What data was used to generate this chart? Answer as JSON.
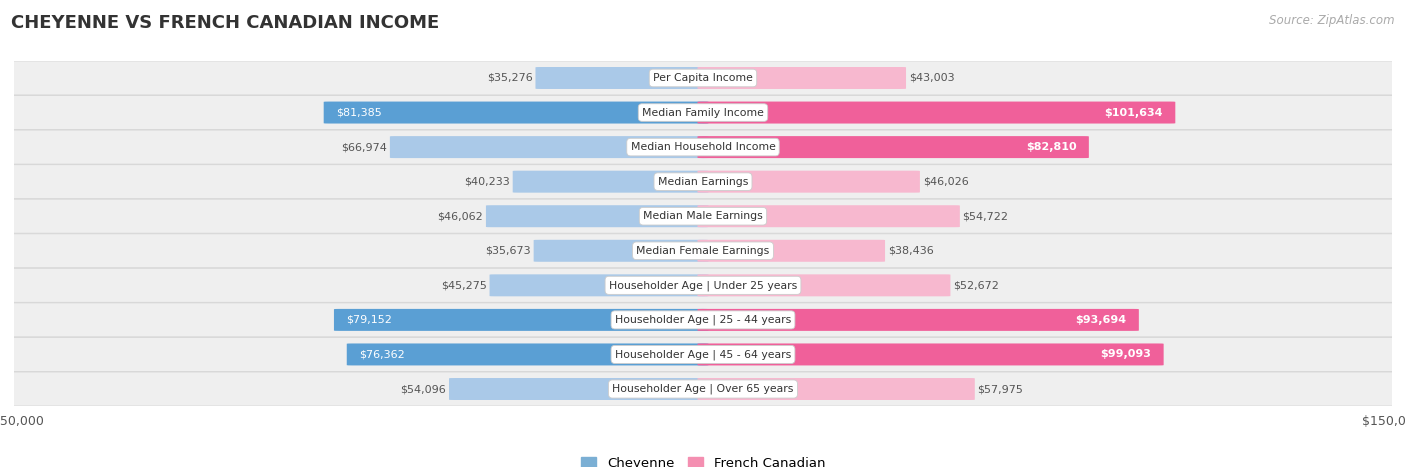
{
  "title": "CHEYENNE VS FRENCH CANADIAN INCOME",
  "source": "Source: ZipAtlas.com",
  "categories": [
    "Per Capita Income",
    "Median Family Income",
    "Median Household Income",
    "Median Earnings",
    "Median Male Earnings",
    "Median Female Earnings",
    "Householder Age | Under 25 years",
    "Householder Age | 25 - 44 years",
    "Householder Age | 45 - 64 years",
    "Householder Age | Over 65 years"
  ],
  "cheyenne_values": [
    35276,
    81385,
    66974,
    40233,
    46062,
    35673,
    45275,
    79152,
    76362,
    54096
  ],
  "french_values": [
    43003,
    101634,
    82810,
    46026,
    54722,
    38436,
    52672,
    93694,
    99093,
    57975
  ],
  "cheyenne_light": "#aac9e8",
  "cheyenne_dark": "#5a9fd4",
  "french_light": "#f7b8cf",
  "french_dark": "#f0609a",
  "max_value": 150000,
  "bar_height": 0.62,
  "row_bg": "#efefef",
  "row_edge": "#d8d8d8",
  "label_dark": "#555555",
  "label_white": "#ffffff",
  "title_color": "#333333",
  "source_color": "#aaaaaa",
  "legend_blue": "#7bafd4",
  "legend_pink": "#f48fb1",
  "inside_threshold": 0.5,
  "cheyenne_inside_threshold": 0.45,
  "french_inside_threshold": 0.55
}
